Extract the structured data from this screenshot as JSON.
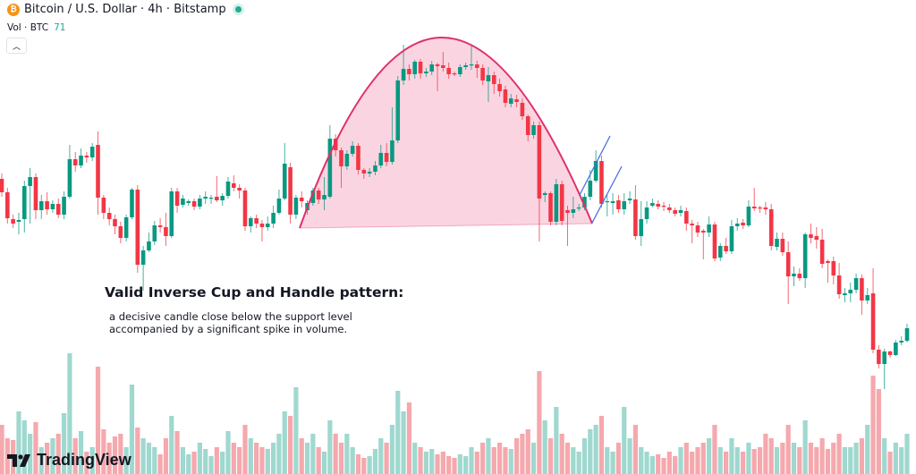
{
  "header": {
    "symbol_title": "Bitcoin / U.S. Dollar · 4h · Bitstamp",
    "symbol_icon": "bitcoin-icon",
    "market_status": "open",
    "volume_label": "Vol · BTC",
    "volume_value": "71",
    "collapse_icon": "chevron-up-icon"
  },
  "annotation": {
    "title": "Valid Inverse Cup and Handle pattern:",
    "line1": "a decisive candle close below the support level",
    "line2": "accompanied by a significant spike in volume."
  },
  "branding": {
    "logo_text": "TradingView"
  },
  "colors": {
    "up": "#089981",
    "down": "#f23645",
    "volume_up": "#9fd8cf",
    "volume_down": "#f5a8ad",
    "cup_stroke": "#e0306a",
    "cup_fill": "#f9d0de",
    "channel": "#4a6ee0"
  },
  "chart_data": {
    "type": "candlestick",
    "timeframe": "4h",
    "grid": false,
    "price_units": "relative (price axis not visible)",
    "ohlc": [
      [
        250,
        256,
        230,
        235
      ],
      [
        235,
        240,
        200,
        206
      ],
      [
        205,
        210,
        195,
        200
      ],
      [
        202,
        212,
        188,
        204
      ],
      [
        205,
        248,
        190,
        242
      ],
      [
        242,
        262,
        200,
        252
      ],
      [
        252,
        256,
        205,
        215
      ],
      [
        215,
        232,
        205,
        225
      ],
      [
        225,
        235,
        210,
        216
      ],
      [
        216,
        226,
        212,
        222
      ],
      [
        222,
        228,
        206,
        210
      ],
      [
        210,
        236,
        205,
        230
      ],
      [
        230,
        288,
        228,
        272
      ],
      [
        272,
        280,
        258,
        265
      ],
      [
        265,
        284,
        262,
        276
      ],
      [
        276,
        280,
        268,
        274
      ],
      [
        274,
        290,
        270,
        286
      ],
      [
        288,
        303,
        210,
        229
      ],
      [
        229,
        232,
        205,
        212
      ],
      [
        212,
        218,
        198,
        205
      ],
      [
        205,
        210,
        188,
        197
      ],
      [
        197,
        202,
        178,
        184
      ],
      [
        184,
        210,
        180,
        207
      ],
      [
        207,
        240,
        205,
        238
      ],
      [
        238,
        243,
        145,
        154
      ],
      [
        154,
        175,
        125,
        170
      ],
      [
        170,
        190,
        168,
        180
      ],
      [
        180,
        203,
        176,
        198
      ],
      [
        198,
        206,
        190,
        196
      ],
      [
        196,
        212,
        175,
        186
      ],
      [
        186,
        240,
        184,
        236
      ],
      [
        236,
        240,
        212,
        220
      ],
      [
        221,
        232,
        218,
        228
      ],
      [
        223,
        227,
        220,
        225
      ],
      [
        225,
        228,
        215,
        219
      ],
      [
        219,
        232,
        216,
        228
      ],
      [
        228,
        236,
        222,
        230
      ],
      [
        229,
        232,
        222,
        229
      ],
      [
        230,
        253,
        224,
        226
      ],
      [
        226,
        234,
        220,
        231
      ],
      [
        231,
        252,
        228,
        247
      ],
      [
        245,
        254,
        236,
        240
      ],
      [
        240,
        244,
        228,
        237
      ],
      [
        237,
        240,
        192,
        197
      ],
      [
        197,
        208,
        190,
        206
      ],
      [
        206,
        210,
        195,
        200
      ],
      [
        200,
        204,
        180,
        196
      ],
      [
        196,
        208,
        192,
        200
      ],
      [
        200,
        220,
        195,
        212
      ],
      [
        212,
        238,
        210,
        228
      ],
      [
        228,
        290,
        226,
        267
      ],
      [
        263,
        268,
        200,
        210
      ],
      [
        210,
        232,
        205,
        229
      ],
      [
        229,
        236,
        218,
        225
      ],
      [
        215,
        226,
        210,
        223
      ],
      [
        223,
        240,
        220,
        237
      ],
      [
        237,
        240,
        222,
        227
      ],
      [
        227,
        252,
        215,
        232
      ],
      [
        230,
        310,
        228,
        295
      ],
      [
        295,
        300,
        275,
        282
      ],
      [
        282,
        285,
        240,
        264
      ],
      [
        264,
        282,
        260,
        278
      ],
      [
        278,
        292,
        275,
        287
      ],
      [
        287,
        290,
        255,
        260
      ],
      [
        260,
        262,
        250,
        256
      ],
      [
        256,
        262,
        252,
        258
      ],
      [
        258,
        270,
        254,
        265
      ],
      [
        265,
        288,
        262,
        279
      ],
      [
        279,
        290,
        264,
        269
      ],
      [
        269,
        330,
        266,
        293
      ],
      [
        293,
        365,
        290,
        360
      ],
      [
        360,
        400,
        355,
        373
      ],
      [
        373,
        378,
        360,
        367
      ],
      [
        367,
        383,
        362,
        381
      ],
      [
        381,
        384,
        362,
        368
      ],
      [
        368,
        374,
        364,
        370
      ],
      [
        370,
        382,
        366,
        378
      ],
      [
        378,
        380,
        348,
        376
      ],
      [
        377,
        392,
        370,
        374
      ],
      [
        374,
        380,
        362,
        367
      ],
      [
        368,
        370,
        365,
        367
      ],
      [
        367,
        378,
        364,
        375
      ],
      [
        375,
        380,
        372,
        377
      ],
      [
        378,
        400,
        372,
        378
      ],
      [
        378,
        382,
        363,
        374
      ],
      [
        374,
        378,
        355,
        360
      ],
      [
        359,
        375,
        336,
        366
      ],
      [
        366,
        370,
        345,
        356
      ],
      [
        356,
        362,
        342,
        348
      ],
      [
        350,
        354,
        330,
        335
      ],
      [
        334,
        345,
        330,
        340
      ],
      [
        339,
        344,
        330,
        336
      ],
      [
        335,
        340,
        316,
        320
      ],
      [
        320,
        322,
        292,
        299
      ],
      [
        299,
        314,
        295,
        310
      ],
      [
        310,
        314,
        180,
        228
      ],
      [
        232,
        236,
        224,
        234
      ],
      [
        234,
        236,
        198,
        202
      ],
      [
        202,
        250,
        198,
        244
      ],
      [
        244,
        248,
        198,
        203
      ],
      [
        215,
        220,
        175,
        212
      ],
      [
        212,
        230,
        206,
        216
      ],
      [
        217,
        222,
        214,
        218
      ],
      [
        218,
        234,
        215,
        230
      ],
      [
        230,
        260,
        226,
        248
      ],
      [
        248,
        282,
        246,
        270
      ],
      [
        270,
        276,
        218,
        222
      ],
      [
        224,
        232,
        208,
        225
      ],
      [
        223,
        234,
        210,
        225
      ],
      [
        226,
        232,
        212,
        216
      ],
      [
        216,
        234,
        210,
        225
      ],
      [
        226,
        236,
        222,
        228
      ],
      [
        227,
        243,
        182,
        186
      ],
      [
        186,
        225,
        175,
        205
      ],
      [
        205,
        225,
        200,
        218
      ],
      [
        220,
        228,
        218,
        223
      ],
      [
        222,
        226,
        216,
        219
      ],
      [
        220,
        224,
        214,
        219
      ],
      [
        218,
        222,
        212,
        215
      ],
      [
        215,
        218,
        208,
        211
      ],
      [
        212,
        220,
        208,
        215
      ],
      [
        214,
        218,
        192,
        200
      ],
      [
        200,
        204,
        178,
        198
      ],
      [
        198,
        202,
        185,
        190
      ],
      [
        192,
        194,
        160,
        190
      ],
      [
        190,
        208,
        185,
        199
      ],
      [
        199,
        202,
        158,
        161
      ],
      [
        162,
        178,
        158,
        175
      ],
      [
        175,
        184,
        166,
        169
      ],
      [
        169,
        204,
        166,
        197
      ],
      [
        197,
        206,
        192,
        200
      ],
      [
        201,
        205,
        194,
        198
      ],
      [
        198,
        226,
        196,
        219
      ],
      [
        219,
        240,
        214,
        217
      ],
      [
        218,
        220,
        212,
        217
      ],
      [
        218,
        224,
        210,
        216
      ],
      [
        216,
        222,
        170,
        175
      ],
      [
        174,
        190,
        170,
        183
      ],
      [
        183,
        190,
        164,
        168
      ],
      [
        168,
        180,
        110,
        141
      ],
      [
        141,
        152,
        130,
        144
      ],
      [
        144,
        150,
        136,
        139
      ],
      [
        139,
        190,
        128,
        188
      ],
      [
        188,
        200,
        178,
        184
      ],
      [
        186,
        196,
        172,
        182
      ],
      [
        182,
        194,
        150,
        155
      ],
      [
        158,
        160,
        134,
        156
      ],
      [
        158,
        163,
        132,
        142
      ],
      [
        142,
        156,
        116,
        121
      ],
      [
        120,
        128,
        112,
        122
      ],
      [
        122,
        134,
        112,
        126
      ],
      [
        126,
        144,
        122,
        139
      ],
      [
        139,
        143,
        98,
        114
      ],
      [
        114,
        128,
        110,
        120
      ],
      [
        122,
        150,
        55,
        59
      ],
      [
        59,
        64,
        38,
        43
      ],
      [
        43,
        60,
        15,
        57
      ],
      [
        57,
        58,
        50,
        53
      ],
      [
        53,
        70,
        52,
        67
      ],
      [
        67,
        74,
        64,
        69
      ],
      [
        69,
        88,
        67,
        83
      ]
    ],
    "volume": [
      55,
      40,
      38,
      70,
      60,
      45,
      58,
      30,
      35,
      40,
      45,
      68,
      135,
      40,
      48,
      25,
      30,
      120,
      50,
      35,
      42,
      45,
      30,
      100,
      52,
      40,
      35,
      30,
      22,
      40,
      65,
      48,
      30,
      22,
      25,
      35,
      28,
      20,
      30,
      25,
      48,
      35,
      30,
      55,
      40,
      35,
      30,
      28,
      35,
      45,
      70,
      65,
      97,
      40,
      35,
      45,
      30,
      25,
      60,
      45,
      35,
      45,
      30,
      22,
      18,
      20,
      28,
      40,
      35,
      55,
      93,
      70,
      80,
      35,
      30,
      25,
      28,
      22,
      25,
      20,
      18,
      22,
      20,
      30,
      25,
      35,
      40,
      30,
      35,
      30,
      28,
      40,
      45,
      50,
      35,
      115,
      60,
      40,
      75,
      45,
      35,
      30,
      25,
      40,
      50,
      55,
      65,
      30,
      25,
      35,
      75,
      40,
      55,
      30,
      25,
      20,
      22,
      18,
      25,
      20,
      30,
      35,
      25,
      30,
      35,
      40,
      55,
      30,
      25,
      40,
      30,
      25,
      35,
      28,
      30,
      45,
      40,
      30,
      35,
      55,
      35,
      30,
      60,
      35,
      30,
      40,
      28,
      35,
      45,
      30,
      30,
      35,
      40,
      55,
      110,
      95,
      40,
      25,
      35,
      30,
      45
    ],
    "drawings": [
      "inverse cup (arc with support line)",
      "handle channel (two parallel lines)"
    ]
  }
}
